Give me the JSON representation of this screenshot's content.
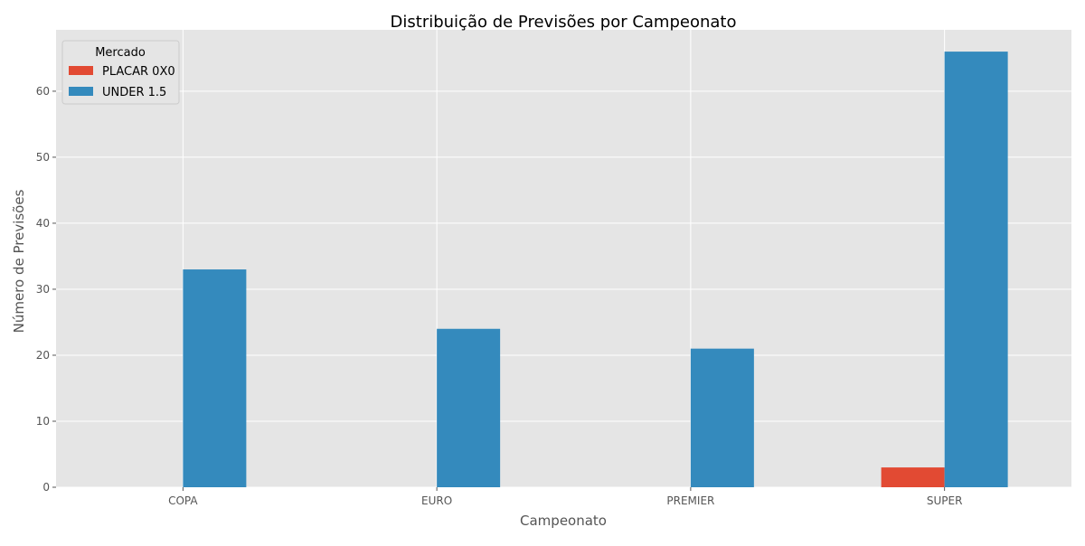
{
  "chart_data": {
    "type": "bar",
    "title": "Distribuição de Previsões por Campeonato",
    "xlabel": "Campeonato",
    "ylabel": "Número de Previsões",
    "categories": [
      "COPA",
      "EURO",
      "PREMIER",
      "SUPER"
    ],
    "series": [
      {
        "name": "PLACAR 0X0",
        "values": [
          0,
          0,
          0,
          3
        ],
        "color": "#E24A33"
      },
      {
        "name": "UNDER 1.5",
        "values": [
          33,
          24,
          21,
          66
        ],
        "color": "#348ABD"
      }
    ],
    "ylim": [
      0,
      69.3
    ],
    "yticks": [
      0,
      10,
      20,
      30,
      40,
      50,
      60
    ],
    "grid": true,
    "legend": {
      "title": "Mercado",
      "placement": "top-left"
    },
    "colors": {
      "plot_background": "#E5E5E5",
      "grid": "#FFFFFF",
      "tick_text": "#555555",
      "label_text": "#555555"
    }
  }
}
